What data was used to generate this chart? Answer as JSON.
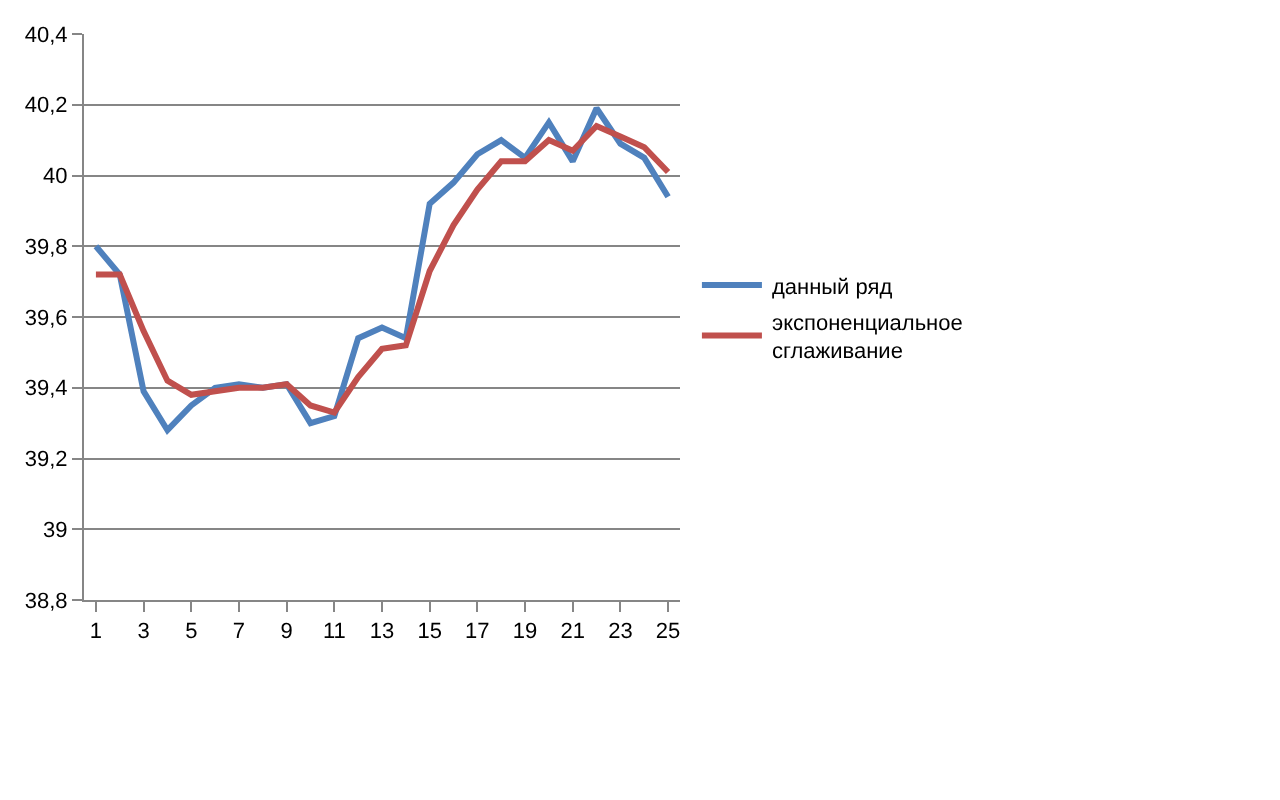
{
  "chart_data": {
    "type": "line",
    "x": [
      1,
      2,
      3,
      4,
      5,
      6,
      7,
      8,
      9,
      10,
      11,
      12,
      13,
      14,
      15,
      16,
      17,
      18,
      19,
      20,
      21,
      22,
      23,
      24,
      25
    ],
    "series": [
      {
        "name": "данный ряд",
        "color": "#4f81bd",
        "values": [
          39.8,
          39.72,
          39.39,
          39.28,
          39.35,
          39.4,
          39.41,
          39.4,
          39.41,
          39.3,
          39.32,
          39.54,
          39.57,
          39.54,
          39.92,
          39.98,
          40.06,
          40.1,
          40.05,
          40.15,
          40.04,
          40.19,
          40.09,
          40.05,
          39.94
        ]
      },
      {
        "name": "экспоненциальное сглаживание",
        "color": "#c0504d",
        "values": [
          39.72,
          39.72,
          39.56,
          39.42,
          39.38,
          39.39,
          39.4,
          39.4,
          39.41,
          39.35,
          39.33,
          39.43,
          39.51,
          39.52,
          39.73,
          39.86,
          39.96,
          40.04,
          40.04,
          40.1,
          40.07,
          40.14,
          40.11,
          40.08,
          40.01
        ]
      }
    ],
    "xlim": [
      0.5,
      25.5
    ],
    "xticks": [
      1,
      3,
      5,
      7,
      9,
      11,
      13,
      15,
      17,
      19,
      21,
      23,
      25
    ],
    "ylim": [
      38.8,
      40.4
    ],
    "yticks": [
      {
        "value": 38.8,
        "label": "38,8"
      },
      {
        "value": 39,
        "label": "39"
      },
      {
        "value": 39.2,
        "label": "39,2"
      },
      {
        "value": 39.4,
        "label": "39,4"
      },
      {
        "value": 39.6,
        "label": "39,6"
      },
      {
        "value": 39.8,
        "label": "39,8"
      },
      {
        "value": 40,
        "label": "40"
      },
      {
        "value": 40.2,
        "label": "40,2"
      },
      {
        "value": 40.4,
        "label": "40,4"
      }
    ],
    "grid": "y",
    "legend": "right",
    "marker": "none",
    "line_style": "solid"
  }
}
